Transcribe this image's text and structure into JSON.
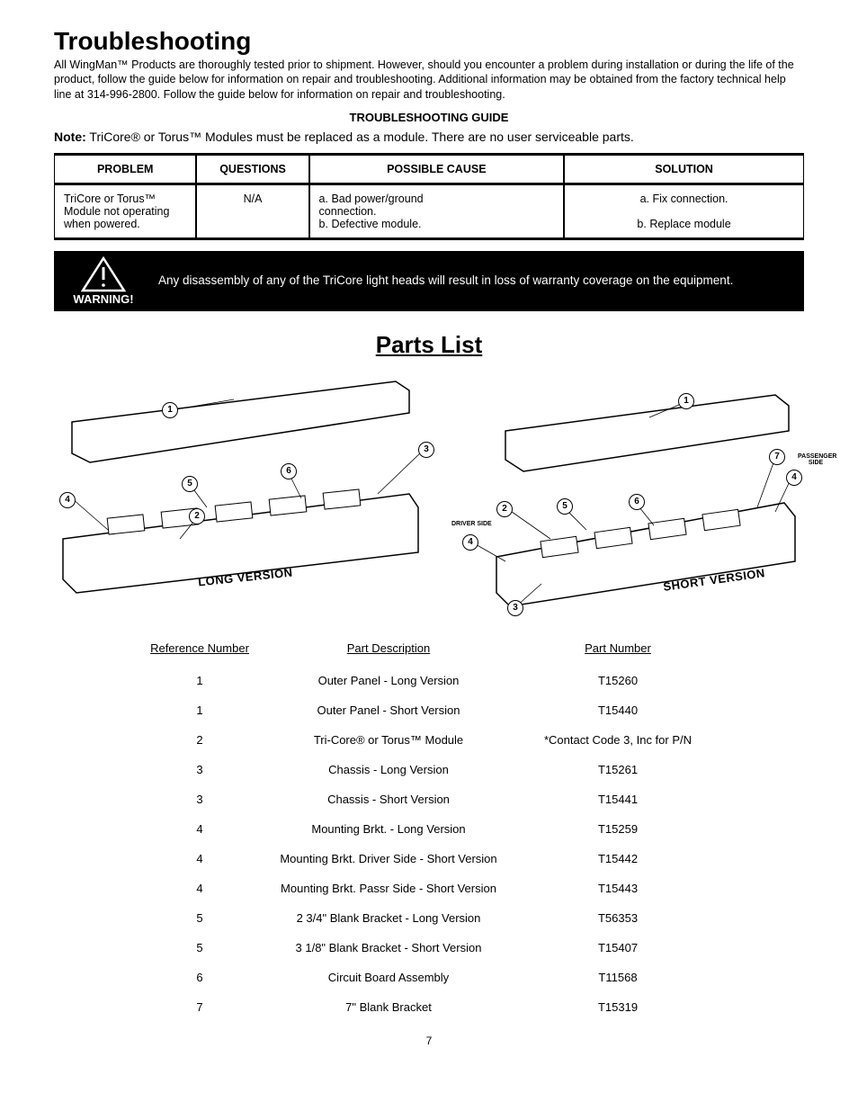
{
  "title": "Troubleshooting",
  "intro": "All WingMan™ Products are thoroughly tested prior to shipment.  However, should you encounter a problem during installation or during the life of the product, follow the guide below for information on repair and troubleshooting.  Additional information may be obtained from the factory technical help line at 314-996-2800. Follow the guide below for information on repair and troubleshooting.",
  "guide_header": "TROUBLESHOOTING GUIDE",
  "note_label": "Note:",
  "note_text": " TriCore® or Torus™ Modules must be replaced as a module. There are no user serviceable parts.",
  "ts_table": {
    "headers": {
      "problem": "PROBLEM",
      "questions": "QUESTIONS",
      "cause": "POSSIBLE CAUSE",
      "solution": "SOLUTION"
    },
    "row": {
      "problem": "TriCore or Torus™ Module not operating when powered.",
      "questions": "N/A",
      "cause": "a.  Bad power/ground\n      connection.\nb.  Defective module.",
      "solution": "a.  Fix connection.\n\nb.  Replace module"
    }
  },
  "warning": {
    "label": "WARNING!",
    "text": "Any disassembly of any of the TriCore light heads will result in loss of warranty coverage on the equipment."
  },
  "parts_title": "Parts List",
  "diagrams": {
    "long_label": "LONG VERSION",
    "short_label": "SHORT VERSION",
    "driver_side": "DRIVER SIDE",
    "passenger_side": "PASSENGER SIDE"
  },
  "parts_list": {
    "headers": {
      "ref": "Reference Number",
      "desc": "Part Description",
      "pn": "Part Number"
    },
    "rows": [
      {
        "ref": "1",
        "desc": "Outer Panel - Long Version",
        "pn": "T15260"
      },
      {
        "ref": "1",
        "desc": "Outer Panel - Short Version",
        "pn": "T15440"
      },
      {
        "ref": "2",
        "desc": "Tri-Core® or Torus™ Module",
        "pn": "*Contact Code 3, Inc for P/N"
      },
      {
        "ref": "3",
        "desc": "Chassis - Long Version",
        "pn": "T15261"
      },
      {
        "ref": "3",
        "desc": "Chassis - Short Version",
        "pn": "T15441"
      },
      {
        "ref": "4",
        "desc": "Mounting Brkt. - Long Version",
        "pn": "T15259"
      },
      {
        "ref": "4",
        "desc": "Mounting Brkt. Driver Side - Short Version",
        "pn": "T15442"
      },
      {
        "ref": "4",
        "desc": "Mounting Brkt. Passr Side - Short Version",
        "pn": "T15443"
      },
      {
        "ref": "5",
        "desc": "2 3/4\" Blank Bracket - Long Version",
        "pn": "T56353"
      },
      {
        "ref": "5",
        "desc": "3 1/8\" Blank Bracket - Short Version",
        "pn": "T15407"
      },
      {
        "ref": "6",
        "desc": "Circuit Board Assembly",
        "pn": "T11568"
      },
      {
        "ref": "7",
        "desc": "7\" Blank Bracket",
        "pn": "T15319"
      }
    ]
  },
  "page_number": "7"
}
